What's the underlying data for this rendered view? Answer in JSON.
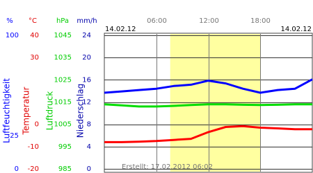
{
  "chart_data": {
    "type": "line",
    "date_left": "14.02.12",
    "date_right": "14.02.12",
    "created": "Erstellt: 17.02.2012 06:02",
    "xlim": [
      0,
      24
    ],
    "xticks": [
      {
        "value": 6,
        "label": "06:00"
      },
      {
        "value": 12,
        "label": "12:00"
      },
      {
        "value": 18,
        "label": "18:00"
      }
    ],
    "daylight": [
      7.6,
      18
    ],
    "daylight_color": "#ffffa0",
    "axes": [
      {
        "unit": "%",
        "title": "Luftfeuchtigkeit",
        "color": "#0000ff",
        "ylim": [
          0,
          100
        ],
        "yticks": [
          100,
          25,
          0
        ]
      },
      {
        "unit": "°C",
        "title": "Temperatur",
        "color": "#e00000",
        "ylim": [
          -20,
          40
        ],
        "yticks": [
          40,
          30,
          0,
          -10,
          -20
        ]
      },
      {
        "unit": "hPa",
        "title": "Luftdruck",
        "color": "#00cc00",
        "ylim": [
          985,
          1045
        ],
        "yticks": [
          1045,
          1035,
          1025,
          1015,
          1005,
          995,
          985
        ]
      },
      {
        "unit": "mm/h",
        "title": "Niederschlag",
        "color": "#0000aa",
        "ylim": [
          0,
          24
        ],
        "yticks": [
          24,
          20,
          16,
          12,
          8,
          4,
          0
        ]
      }
    ],
    "x": [
      0,
      2,
      4,
      6,
      8,
      10,
      12,
      14,
      16,
      18,
      20,
      22,
      24
    ],
    "series": [
      {
        "axis": 0,
        "color": "#0000ff",
        "values": [
          57,
          58,
          59,
          60,
          62,
          63,
          66,
          64,
          60,
          57,
          59,
          60,
          67
        ]
      },
      {
        "axis": 1,
        "color": "#ff0000",
        "values": [
          -8,
          -8,
          -7.8,
          -7.5,
          -7,
          -6.5,
          -3.5,
          -1.2,
          -0.8,
          -1.5,
          -1.8,
          -2.2,
          -2.2
        ]
      },
      {
        "axis": 2,
        "color": "#00dd00",
        "values": [
          1014,
          1013.5,
          1013,
          1013,
          1013.3,
          1013.7,
          1014,
          1014,
          1013.8,
          1013.7,
          1013.8,
          1014,
          1014
        ]
      }
    ]
  }
}
